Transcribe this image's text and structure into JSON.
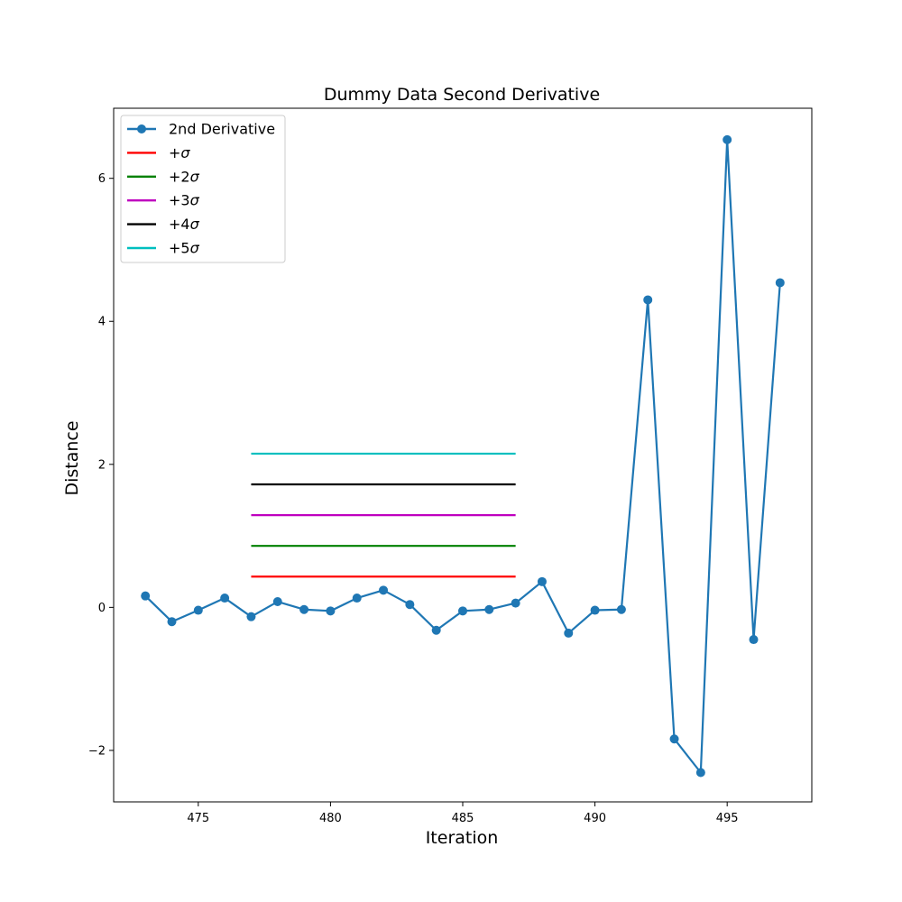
{
  "chart_data": {
    "type": "line",
    "title": "Dummy Data Second Derivative",
    "xlabel": "Iteration",
    "ylabel": "Distance",
    "xlim": [
      471.8,
      498.2
    ],
    "ylim": [
      -2.72,
      6.98
    ],
    "xticks": [
      475,
      480,
      485,
      490,
      495
    ],
    "yticks": [
      -2,
      0,
      2,
      4,
      6
    ],
    "ytick_labels": [
      "−2",
      "0",
      "2",
      "4",
      "6"
    ],
    "grid": false,
    "legend_position": "top-left",
    "series": [
      {
        "name": "2nd Derivative",
        "color": "#1f77b4",
        "marker": "circle",
        "x": [
          473,
          474,
          475,
          476,
          477,
          478,
          479,
          480,
          481,
          482,
          483,
          484,
          485,
          486,
          487,
          488,
          489,
          490,
          491,
          492,
          493,
          494,
          495,
          496,
          497
        ],
        "y": [
          0.16,
          -0.2,
          -0.04,
          0.13,
          -0.13,
          0.08,
          -0.03,
          -0.05,
          0.13,
          0.24,
          0.04,
          -0.32,
          -0.05,
          -0.03,
          0.06,
          0.36,
          -0.36,
          -0.04,
          -0.03,
          4.3,
          -1.84,
          -2.31,
          6.54,
          -0.45,
          4.54
        ]
      }
    ],
    "thresholds": [
      {
        "name": "+σ",
        "prefix": "+",
        "suffix": "σ",
        "color": "#ff0000",
        "y": 0.43,
        "x_start": 477,
        "x_end": 487
      },
      {
        "name": "+2σ",
        "prefix": "+2",
        "suffix": "σ",
        "color": "#008000",
        "y": 0.86,
        "x_start": 477,
        "x_end": 487
      },
      {
        "name": "+3σ",
        "prefix": "+3",
        "suffix": "σ",
        "color": "#bf00bf",
        "y": 1.29,
        "x_start": 477,
        "x_end": 487
      },
      {
        "name": "+4σ",
        "prefix": "+4",
        "suffix": "σ",
        "color": "#000000",
        "y": 1.72,
        "x_start": 477,
        "x_end": 487
      },
      {
        "name": "+5σ",
        "prefix": "+5",
        "suffix": "σ",
        "color": "#00bfbf",
        "y": 2.15,
        "x_start": 477,
        "x_end": 487
      }
    ]
  }
}
